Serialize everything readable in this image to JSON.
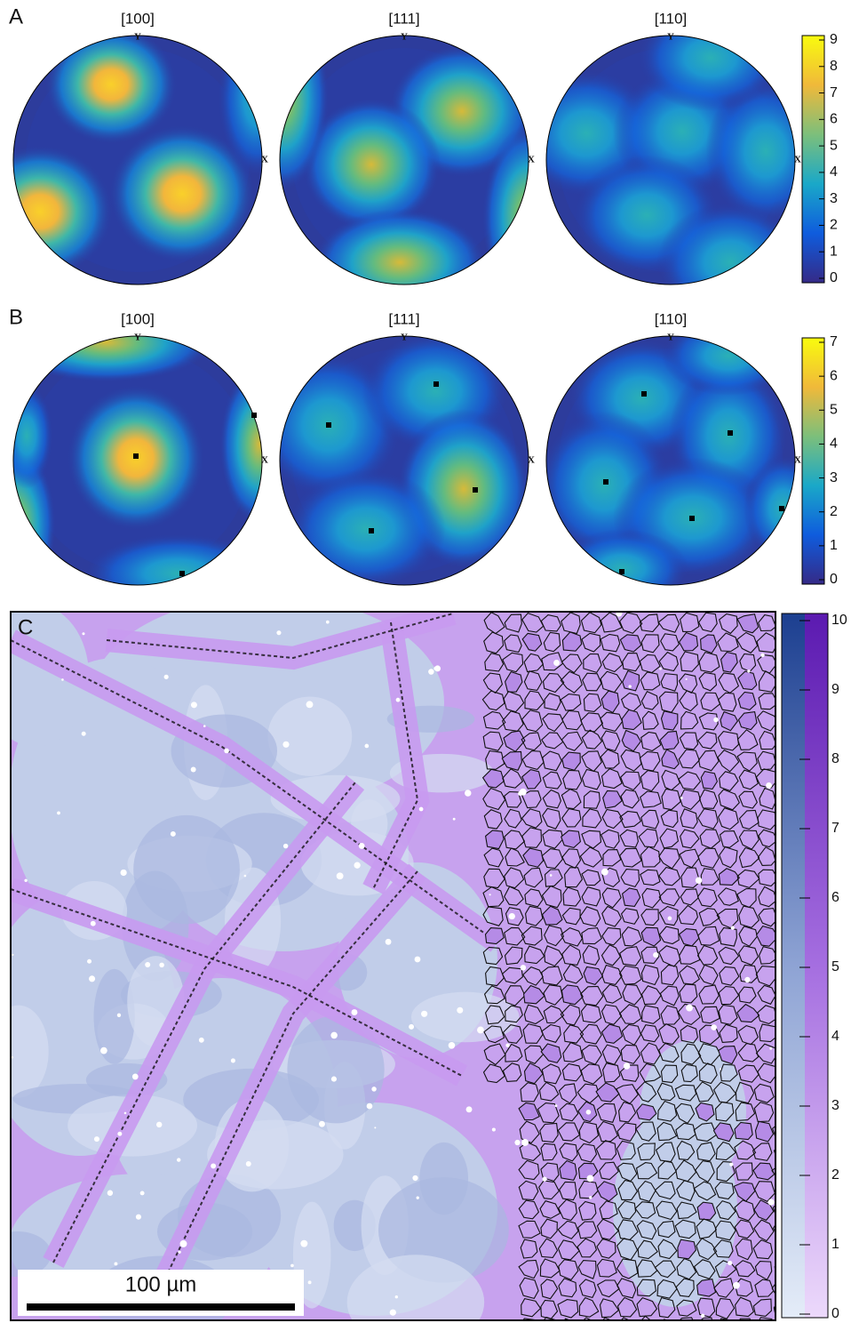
{
  "panels": [
    {
      "label": "A",
      "pole_figures": [
        {
          "title": "[100]",
          "y_axis": "Y",
          "x_axis": "X"
        },
        {
          "title": "[111]",
          "y_axis": "Y",
          "x_axis": "X"
        },
        {
          "title": "[110]",
          "y_axis": "Y",
          "x_axis": "X"
        }
      ],
      "colorbar_ticks": [
        0,
        1,
        2,
        3,
        4,
        5,
        6,
        7,
        8,
        9
      ]
    },
    {
      "label": "B",
      "pole_figures": [
        {
          "title": "[100]",
          "y_axis": "Y",
          "x_axis": "X"
        },
        {
          "title": "[111]",
          "y_axis": "Y",
          "x_axis": "X"
        },
        {
          "title": "[110]",
          "y_axis": "Y",
          "x_axis": "X"
        }
      ],
      "colorbar_ticks": [
        0,
        1,
        2,
        3,
        4,
        5,
        6,
        7
      ]
    }
  ],
  "panel_c": {
    "label": "C",
    "colorbar_ticks": [
      0,
      1,
      2,
      3,
      4,
      5,
      6,
      7,
      8,
      9,
      10
    ],
    "scale_bar": "100 µm"
  }
}
